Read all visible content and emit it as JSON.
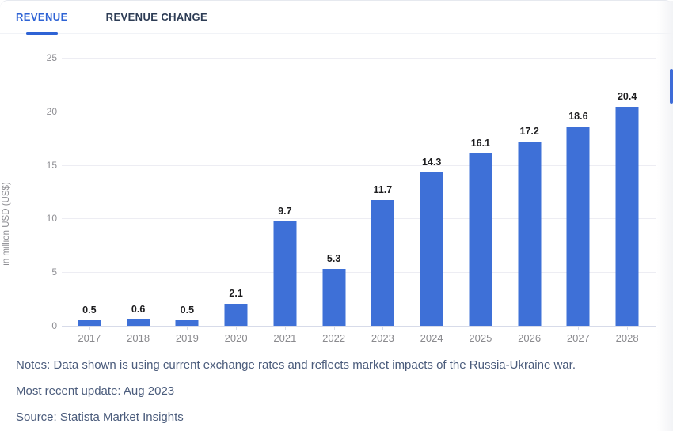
{
  "tabs": [
    {
      "label": "REVENUE",
      "active": true
    },
    {
      "label": "REVENUE CHANGE",
      "active": false
    }
  ],
  "chart_data": {
    "type": "bar",
    "categories": [
      "2017",
      "2018",
      "2019",
      "2020",
      "2021",
      "2022",
      "2023",
      "2024",
      "2025",
      "2026",
      "2027",
      "2028"
    ],
    "values": [
      0.5,
      0.6,
      0.5,
      2.1,
      9.7,
      5.3,
      11.7,
      14.3,
      16.1,
      17.2,
      18.6,
      20.4
    ],
    "title": "",
    "xlabel": "",
    "ylabel": "in million USD (US$)",
    "ylim": [
      0,
      25
    ],
    "y_ticks": [
      0,
      5,
      10,
      15,
      20,
      25
    ],
    "grid": true,
    "legend": "none",
    "bar_color": "#3e70d7",
    "value_labels_shown": true
  },
  "notes": {
    "line1": "Notes: Data shown is using current exchange rates and reflects market impacts of the Russia-Ukraine war.",
    "line2": "Most recent update: Aug 2023",
    "line3": "Source: Statista Market Insights"
  },
  "colors": {
    "accent_blue": "#2e63d5",
    "bar_blue": "#3e70d7",
    "inactive_tab": "#2d3c55",
    "axis_text": "#8e8e93",
    "notes_text": "#4b5c7c",
    "gridline": "#ededf3",
    "baseline": "#d7dbe9"
  }
}
